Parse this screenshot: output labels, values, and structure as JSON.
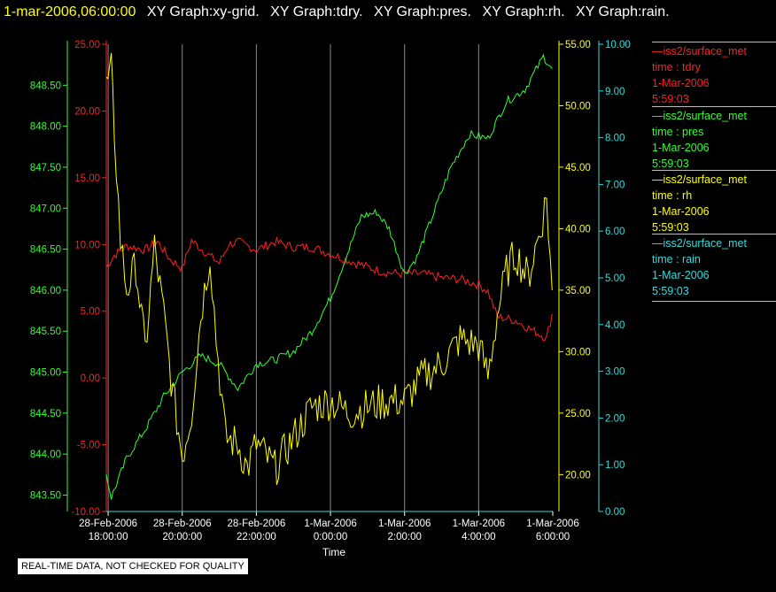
{
  "header": {
    "time": "1-mar-2006,06:00:00",
    "items": [
      "XY Graph:xy-grid.",
      "XY Graph:tdry.",
      "XY Graph:pres.",
      "XY Graph:rh.",
      "XY Graph:rain."
    ]
  },
  "notice": "REAL-TIME DATA, NOT CHECKED FOR QUALITY",
  "legend": [
    {
      "line": "—iss2/surface_met",
      "var": "time : tdry",
      "date": "1-Mar-2006",
      "time": "5:59:03",
      "color": "#ff2020"
    },
    {
      "line": "—iss2/surface_met",
      "var": "time : pres",
      "date": "1-Mar-2006",
      "time": "5:59:03",
      "color": "#33ff33"
    },
    {
      "line": "—iss2/surface_met",
      "var": "time : rh",
      "date": "1-Mar-2006",
      "time": "5:59:03",
      "color": "#ffff00"
    },
    {
      "line": "—iss2/surface_met",
      "var": "time : rain",
      "date": "1-Mar-2006",
      "time": "5:59:03",
      "color": "#33dddd"
    }
  ],
  "chart_data": {
    "type": "line",
    "xlabel": "Time",
    "x_ticks": [
      {
        "d": "28-Feb-2006",
        "t": "18:00:00"
      },
      {
        "d": "28-Feb-2006",
        "t": "20:00:00"
      },
      {
        "d": "28-Feb-2006",
        "t": "22:00:00"
      },
      {
        "d": "1-Mar-2006",
        "t": "0:00:00"
      },
      {
        "d": "1-Mar-2006",
        "t": "2:00:00"
      },
      {
        "d": "1-Mar-2006",
        "t": "4:00:00"
      },
      {
        "d": "1-Mar-2006",
        "t": "6:00:00"
      }
    ],
    "x_range": [
      "2006-02-28T17:57",
      "2006-03-01T06:00"
    ],
    "grid": "vertical",
    "axes": [
      {
        "id": "tdry",
        "color": "#ff2020",
        "side": "left",
        "ylim": [
          -10,
          25
        ],
        "ticks": [
          "-10.00",
          "-5.00",
          "0.00",
          "5.00",
          "10.00",
          "15.00",
          "20.00",
          "25.00"
        ]
      },
      {
        "id": "pres",
        "color": "#33ff33",
        "side": "left",
        "ylim": [
          843.3,
          849.0
        ],
        "ticks": [
          "843.50",
          "844.00",
          "844.50",
          "845.00",
          "845.50",
          "846.00",
          "846.50",
          "847.00",
          "847.50",
          "848.00",
          "848.50"
        ]
      },
      {
        "id": "rh",
        "color": "#ffff00",
        "side": "right",
        "ylim": [
          17.0,
          55.0
        ],
        "ticks": [
          "20.00",
          "25.00",
          "30.00",
          "35.00",
          "40.00",
          "45.00",
          "50.00",
          "55.00"
        ]
      },
      {
        "id": "rain",
        "color": "#33dddd",
        "side": "right",
        "ylim": [
          0,
          10.0
        ],
        "ticks": [
          "0.00",
          "1.00",
          "2.00",
          "3.00",
          "4.00",
          "5.00",
          "6.00",
          "7.00",
          "8.00",
          "9.00",
          "10.00"
        ]
      }
    ],
    "series": [
      {
        "axis": "tdry",
        "color": "#ff2020",
        "points": [
          [
            "2006-02-28T17:57",
            8.3
          ],
          [
            "2006-02-28T18:10",
            9.2
          ],
          [
            "2006-02-28T18:30",
            9.9
          ],
          [
            "2006-02-28T19:00",
            9.6
          ],
          [
            "2006-02-28T19:20",
            10.2
          ],
          [
            "2006-02-28T19:40",
            8.9
          ],
          [
            "2006-02-28T20:00",
            8.2
          ],
          [
            "2006-02-28T20:15",
            10.3
          ],
          [
            "2006-02-28T20:40",
            9.3
          ],
          [
            "2006-02-28T21:00",
            8.6
          ],
          [
            "2006-02-28T21:15",
            10.0
          ],
          [
            "2006-02-28T21:30",
            10.2
          ],
          [
            "2006-02-28T22:00",
            9.6
          ],
          [
            "2006-02-28T22:30",
            10.2
          ],
          [
            "2006-02-28T23:00",
            9.8
          ],
          [
            "2006-02-28T23:30",
            9.8
          ],
          [
            "2006-03-01T00:00",
            9.3
          ],
          [
            "2006-03-01T00:30",
            8.8
          ],
          [
            "2006-03-01T01:00",
            8.3
          ],
          [
            "2006-03-01T01:30",
            7.9
          ],
          [
            "2006-03-01T02:00",
            7.8
          ],
          [
            "2006-03-01T02:30",
            7.8
          ],
          [
            "2006-03-01T03:00",
            7.5
          ],
          [
            "2006-03-01T03:30",
            7.4
          ],
          [
            "2006-03-01T04:00",
            7.0
          ],
          [
            "2006-03-01T04:15",
            6.5
          ],
          [
            "2006-03-01T04:30",
            4.6
          ],
          [
            "2006-03-01T05:00",
            4.3
          ],
          [
            "2006-03-01T05:30",
            3.5
          ],
          [
            "2006-03-01T05:50",
            3.0
          ],
          [
            "2006-03-01T05:59",
            4.8
          ]
        ]
      },
      {
        "axis": "pres",
        "color": "#33ff33",
        "points": [
          [
            "2006-02-28T17:57",
            843.75
          ],
          [
            "2006-02-28T18:05",
            843.47
          ],
          [
            "2006-02-28T18:30",
            843.95
          ],
          [
            "2006-02-28T19:00",
            844.3
          ],
          [
            "2006-02-28T19:30",
            844.7
          ],
          [
            "2006-02-28T20:00",
            845.0
          ],
          [
            "2006-02-28T20:30",
            845.2
          ],
          [
            "2006-02-28T21:00",
            845.1
          ],
          [
            "2006-02-28T21:30",
            844.8
          ],
          [
            "2006-02-28T22:00",
            845.1
          ],
          [
            "2006-02-28T22:30",
            845.15
          ],
          [
            "2006-02-28T23:00",
            845.25
          ],
          [
            "2006-02-28T23:30",
            845.5
          ],
          [
            "2006-03-01T00:00",
            845.9
          ],
          [
            "2006-03-01T00:30",
            846.5
          ],
          [
            "2006-03-01T00:50",
            846.9
          ],
          [
            "2006-03-01T01:15",
            846.95
          ],
          [
            "2006-03-01T01:35",
            846.75
          ],
          [
            "2006-03-01T02:00",
            846.2
          ],
          [
            "2006-03-01T02:20",
            846.4
          ],
          [
            "2006-03-01T02:45",
            846.9
          ],
          [
            "2006-03-01T03:15",
            847.5
          ],
          [
            "2006-03-01T03:45",
            847.9
          ],
          [
            "2006-03-01T04:15",
            847.85
          ],
          [
            "2006-03-01T04:45",
            848.3
          ],
          [
            "2006-03-01T05:15",
            848.45
          ],
          [
            "2006-03-01T05:45",
            848.85
          ],
          [
            "2006-03-01T05:59",
            848.7
          ]
        ]
      },
      {
        "axis": "rh",
        "color": "#ffff00",
        "points": [
          [
            "2006-02-28T17:57",
            51.5
          ],
          [
            "2006-02-28T18:05",
            52.8
          ],
          [
            "2006-02-28T18:10",
            48.0
          ],
          [
            "2006-02-28T18:20",
            39.0
          ],
          [
            "2006-02-28T18:30",
            35.0
          ],
          [
            "2006-02-28T18:45",
            37.0
          ],
          [
            "2006-02-28T19:00",
            30.0
          ],
          [
            "2006-02-28T19:15",
            38.5
          ],
          [
            "2006-02-28T19:30",
            33.0
          ],
          [
            "2006-02-28T19:45",
            26.5
          ],
          [
            "2006-02-28T20:00",
            21.5
          ],
          [
            "2006-02-28T20:15",
            25.0
          ],
          [
            "2006-02-28T20:30",
            33.0
          ],
          [
            "2006-02-28T20:45",
            38.0
          ],
          [
            "2006-02-28T20:55",
            31.0
          ],
          [
            "2006-02-28T21:10",
            23.0
          ],
          [
            "2006-02-28T21:30",
            22.5
          ],
          [
            "2006-02-28T21:45",
            20.5
          ],
          [
            "2006-02-28T22:00",
            22.5
          ],
          [
            "2006-02-28T22:30",
            20.5
          ],
          [
            "2006-02-28T23:00",
            23.0
          ],
          [
            "2006-02-28T23:30",
            25.5
          ],
          [
            "2006-03-01T00:00",
            26.0
          ],
          [
            "2006-03-01T00:30",
            25.0
          ],
          [
            "2006-03-01T01:00",
            25.5
          ],
          [
            "2006-03-01T01:30",
            26.0
          ],
          [
            "2006-03-01T02:00",
            26.0
          ],
          [
            "2006-03-01T02:30",
            28.0
          ],
          [
            "2006-03-01T03:00",
            29.0
          ],
          [
            "2006-03-01T03:30",
            31.0
          ],
          [
            "2006-03-01T04:00",
            30.5
          ],
          [
            "2006-03-01T04:15",
            28.0
          ],
          [
            "2006-03-01T04:30",
            33.0
          ],
          [
            "2006-03-01T04:45",
            36.5
          ],
          [
            "2006-03-01T05:00",
            38.0
          ],
          [
            "2006-03-01T05:20",
            36.0
          ],
          [
            "2006-03-01T05:40",
            40.0
          ],
          [
            "2006-03-01T05:50",
            42.5
          ],
          [
            "2006-03-01T05:59",
            35.0
          ]
        ]
      },
      {
        "axis": "rain",
        "color": "#33dddd",
        "points": [
          [
            "2006-02-28T17:57",
            0.0
          ],
          [
            "2006-03-01T05:59",
            0.0
          ]
        ]
      }
    ]
  }
}
